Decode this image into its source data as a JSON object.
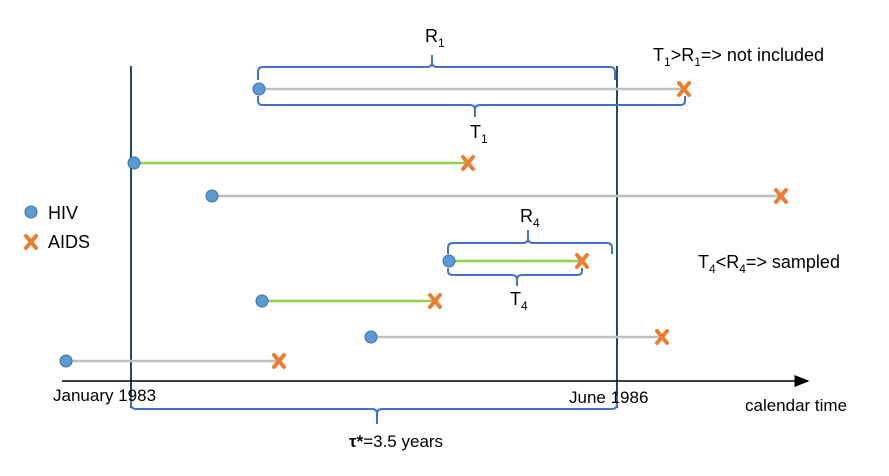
{
  "colors": {
    "hiv": "#5b9bd5",
    "aids": "#ed7d31",
    "observed_line": "#8fd14f",
    "unobserved_line": "#bfbfbf",
    "window_line": "#1f4e5b",
    "bracket": "#4472c4",
    "axis": "#000000"
  },
  "legend": {
    "hiv_icon": "blue-dot",
    "hiv_label": "HIV",
    "aids_icon": "orange-cross",
    "aids_label": "AIDS"
  },
  "axis": {
    "start_label": "January 1983",
    "end_label": "June 1986",
    "label": "calendar time"
  },
  "window": {
    "tau_symbol": "τ*",
    "tau_value": "=3.5 years"
  },
  "brackets": {
    "r1_main": "R",
    "r1_sub": "1",
    "t1_main": "T",
    "t1_sub": "1",
    "r4_main": "R",
    "r4_sub": "4",
    "t4_main": "T",
    "t4_sub": "4"
  },
  "annotations": {
    "not_included": {
      "a": "T",
      "a_sub": "1",
      "mid": ">R",
      "mid_sub": "1",
      "rest": "=> not included"
    },
    "sampled": {
      "a": "T",
      "a_sub": "4",
      "mid": "<R",
      "mid_sub": "4",
      "rest": "=> sampled"
    }
  },
  "cases": [
    {
      "id": 1,
      "status": "not-included"
    },
    {
      "id": 2,
      "status": "sampled"
    },
    {
      "id": 3,
      "status": "not-sampled"
    },
    {
      "id": 4,
      "status": "sampled"
    },
    {
      "id": 5,
      "status": "sampled"
    },
    {
      "id": 6,
      "status": "not-sampled"
    },
    {
      "id": 7,
      "status": "not-sampled"
    }
  ]
}
